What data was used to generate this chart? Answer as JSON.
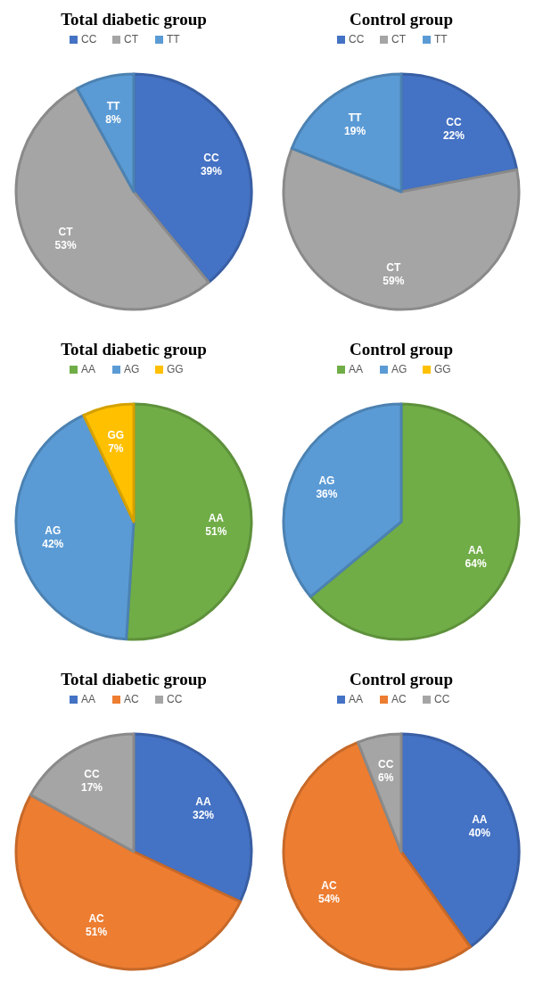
{
  "chart_data": [
    {
      "type": "pie",
      "title": "Total diabetic group",
      "categories": [
        "CC",
        "CT",
        "TT"
      ],
      "values": [
        39,
        53,
        8
      ],
      "colors": [
        "#4472c4",
        "#a5a5a5",
        "#5b9bd5"
      ],
      "value_labels": [
        "39%",
        "53%",
        "8%"
      ],
      "legend": "top"
    },
    {
      "type": "pie",
      "title": "Control group",
      "categories": [
        "CC",
        "CT",
        "TT"
      ],
      "values": [
        22,
        59,
        19
      ],
      "colors": [
        "#4472c4",
        "#a5a5a5",
        "#5b9bd5"
      ],
      "value_labels": [
        "22%",
        "59%",
        "19%"
      ],
      "legend": "top"
    },
    {
      "type": "pie",
      "title": "Total diabetic group",
      "categories": [
        "AA",
        "AG",
        "GG"
      ],
      "values": [
        51,
        42,
        7
      ],
      "colors": [
        "#70ad47",
        "#5b9bd5",
        "#ffc000"
      ],
      "value_labels": [
        "51%",
        "42%",
        "7%"
      ],
      "legend": "top"
    },
    {
      "type": "pie",
      "title": "Control group",
      "categories": [
        "AA",
        "AG",
        "GG"
      ],
      "values": [
        64,
        36,
        0
      ],
      "colors": [
        "#70ad47",
        "#5b9bd5",
        "#ffc000"
      ],
      "value_labels": [
        "64%",
        "36%",
        null
      ],
      "legend": "top"
    },
    {
      "type": "pie",
      "title": "Total diabetic group",
      "categories": [
        "AA",
        "AC",
        "CC"
      ],
      "values": [
        32,
        51,
        17
      ],
      "colors": [
        "#4472c4",
        "#ed7d31",
        "#a5a5a5"
      ],
      "value_labels": [
        "32%",
        "51%",
        "17%"
      ],
      "legend": "top"
    },
    {
      "type": "pie",
      "title": "Control group",
      "categories": [
        "AA",
        "AC",
        "CC"
      ],
      "values": [
        40,
        54,
        6
      ],
      "colors": [
        "#4472c4",
        "#ed7d31",
        "#a5a5a5"
      ],
      "value_labels": [
        "40%",
        "54%",
        "6%"
      ],
      "legend": "top"
    }
  ]
}
